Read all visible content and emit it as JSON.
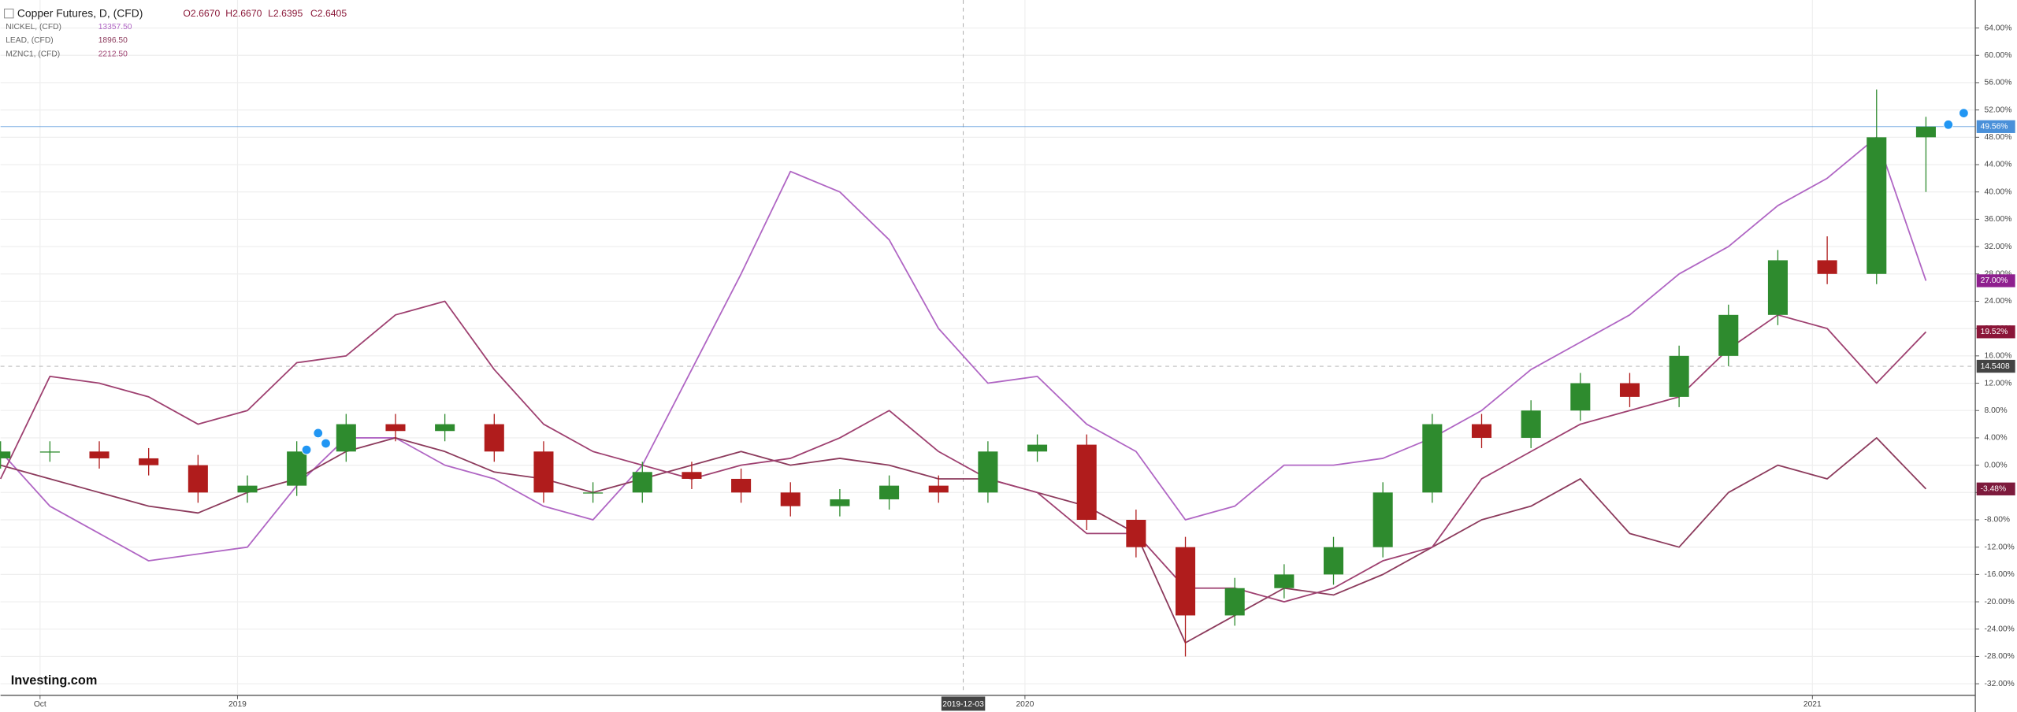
{
  "chart_data": {
    "type": "candlestick",
    "title": "Copper Futures, D, (CFD)",
    "ohlc_labels": [
      "O2.6670",
      "H2.6670",
      "L2.6395",
      "C2.6405"
    ],
    "watermark": "Investing.com",
    "xlim": [
      0,
      40
    ],
    "xticks": [
      {
        "value": 0.8,
        "label": "Oct"
      },
      {
        "value": 4.8,
        "label": "2019"
      },
      {
        "value": 20.75,
        "label": "2020"
      },
      {
        "value": 36.7,
        "label": "2021"
      }
    ],
    "crosshair_x": {
      "value": 19.5,
      "label": "2019-12-03"
    },
    "crosshair_y_label": "14.5408",
    "ylim": [
      -33.5,
      68.1
    ],
    "yticks": [
      {
        "value": 64,
        "label": "64.00%"
      },
      {
        "value": 60,
        "label": "60.00%"
      },
      {
        "value": 56,
        "label": "56.00%"
      },
      {
        "value": 52,
        "label": "52.00%"
      },
      {
        "value": 48,
        "label": "48.00%"
      },
      {
        "value": 44,
        "label": "44.00%"
      },
      {
        "value": 40,
        "label": "40.00%"
      },
      {
        "value": 36,
        "label": "36.00%"
      },
      {
        "value": 32,
        "label": "32.00%"
      },
      {
        "value": 28,
        "label": "28.00%"
      },
      {
        "value": 24,
        "label": "24.00%"
      },
      {
        "value": 20,
        "label": "20.00%"
      },
      {
        "value": 16,
        "label": "16.00%"
      },
      {
        "value": 12,
        "label": "12.00%"
      },
      {
        "value": 8,
        "label": "8.00%"
      },
      {
        "value": 4,
        "label": "4.00%"
      },
      {
        "value": 0,
        "label": "0.00%"
      },
      {
        "value": -4,
        "label": "-4.00%"
      },
      {
        "value": -8,
        "label": "-8.00%"
      },
      {
        "value": -12,
        "label": "-12.00%"
      },
      {
        "value": -16,
        "label": "-16.00%"
      },
      {
        "value": -20,
        "label": "-20.00%"
      },
      {
        "value": -24,
        "label": "-24.00%"
      },
      {
        "value": -28,
        "label": "-28.00%"
      },
      {
        "value": -32,
        "label": "-32.00%"
      }
    ],
    "grid": true,
    "candles": {
      "up_color": "#2e8b2e",
      "down_color": "#b01c1c",
      "line_color": "#4a90d9",
      "end_label": "49.56%",
      "open": [
        1,
        2,
        2,
        1,
        0,
        -4,
        -3,
        2,
        6,
        5,
        6,
        2,
        -4,
        -4,
        -1,
        -2,
        -4,
        -6,
        -5,
        -3,
        -4,
        2,
        3,
        -8,
        -12,
        -22,
        -18,
        -16,
        -12,
        -4,
        6,
        4,
        8,
        12,
        10,
        16,
        22,
        30,
        28,
        48
      ],
      "high": [
        3.5,
        3.5,
        3.5,
        2.5,
        1.5,
        -1.5,
        3.5,
        7.5,
        7.5,
        7.5,
        7.5,
        3.5,
        -2.5,
        0.5,
        0.5,
        -0.5,
        -2.5,
        -3.5,
        -1.5,
        -1.5,
        3.5,
        4.5,
        4.5,
        -6.5,
        -10.5,
        -16.5,
        -14.5,
        -10.5,
        -2.5,
        7.5,
        7.5,
        9.5,
        13.5,
        13.5,
        17.5,
        23.5,
        31.5,
        33.5,
        55,
        51
      ],
      "low": [
        -0.5,
        0.5,
        -0.5,
        -1.5,
        -5.5,
        -5.5,
        -4.5,
        0.5,
        3.5,
        3.5,
        0.5,
        -5.5,
        -5.5,
        -5.5,
        -3.5,
        -5.5,
        -7.5,
        -7.5,
        -6.5,
        -5.5,
        -5.5,
        0.5,
        -9.5,
        -13.5,
        -28,
        -23.5,
        -19.5,
        -17.5,
        -13.5,
        -5.5,
        2.5,
        2.5,
        6.5,
        8.5,
        8.5,
        14.5,
        20.5,
        26.5,
        26.5,
        40
      ],
      "close": [
        2,
        2,
        1,
        0,
        -4,
        -3,
        2,
        6,
        5,
        6,
        2,
        -4,
        -4,
        -1,
        -2,
        -4,
        -6,
        -5,
        -3,
        -4,
        2,
        3,
        -8,
        -12,
        -22,
        -18,
        -16,
        -12,
        -4,
        6,
        4,
        8,
        12,
        10,
        16,
        22,
        30,
        28,
        48,
        49.56
      ]
    },
    "series": [
      {
        "name": "NICKEL, (CFD)",
        "last_price": "13357.50",
        "color": "#b066c4",
        "label_color": "#8e1f8e",
        "type": "line",
        "end_label": "27.00%",
        "values": [
          2,
          -6,
          -10,
          -14,
          -13,
          -12,
          -3,
          4,
          4,
          0,
          -2,
          -6,
          -8,
          0,
          14,
          28,
          43,
          40,
          33,
          20,
          12,
          13,
          6,
          2,
          -8,
          -6,
          0,
          0,
          1,
          4,
          8,
          14,
          18,
          22,
          28,
          32,
          38,
          42,
          48,
          27
        ]
      },
      {
        "name": "LEAD, (CFD)",
        "last_price": "1896.50",
        "color": "#8c3a5c",
        "label_color": "#7d1a3c",
        "type": "line",
        "end_label": "-3.48%",
        "values": [
          0,
          -2,
          -4,
          -6,
          -7,
          -4,
          -2,
          2,
          4,
          2,
          -1,
          -2,
          -4,
          -2,
          0,
          2,
          0,
          1,
          0,
          -2,
          -2,
          -4,
          -6,
          -10,
          -26,
          -22,
          -18,
          -19,
          -16,
          -12,
          -8,
          -6,
          -2,
          -10,
          -12,
          -4,
          0,
          -2,
          4,
          -3.48
        ]
      },
      {
        "name": "MZNC1, (CFD)",
        "last_price": "2212.50",
        "color": "#9e4070",
        "label_color": "#8b1538",
        "type": "line",
        "end_label": "19.52%",
        "values": [
          -2,
          13,
          12,
          10,
          6,
          8,
          15,
          16,
          22,
          24,
          14,
          6,
          2,
          0,
          -2,
          0,
          1,
          4,
          8,
          2,
          -2,
          -4,
          -10,
          -10,
          -18,
          -18,
          -20,
          -18,
          -14,
          -12,
          -2,
          2,
          6,
          8,
          10,
          17,
          22,
          20,
          12,
          19.52
        ]
      }
    ]
  }
}
